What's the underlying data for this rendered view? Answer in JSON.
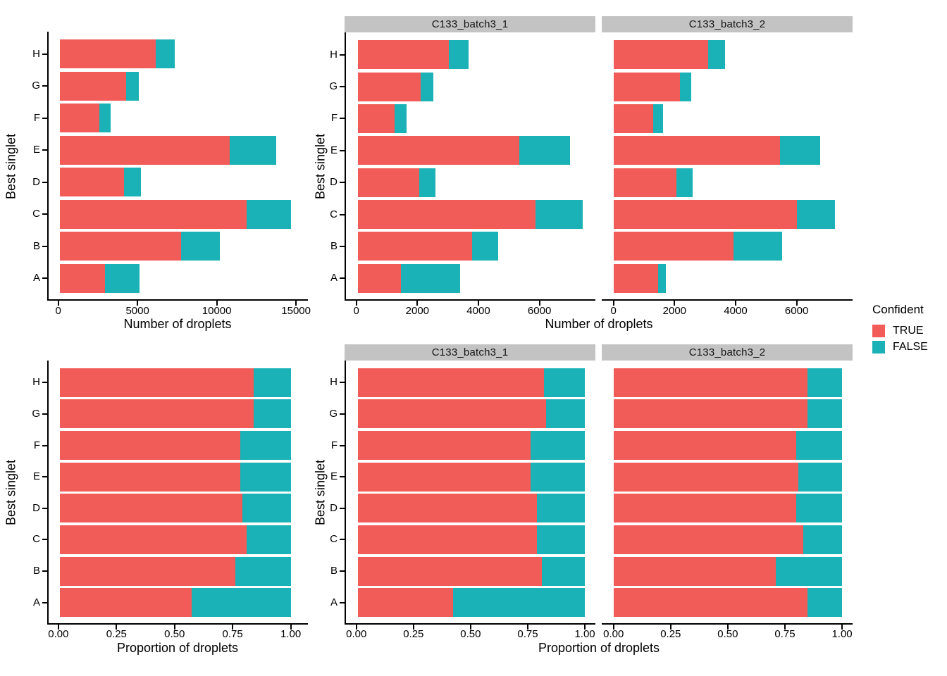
{
  "legend": {
    "title": "Confident",
    "items": [
      {
        "label": "TRUE",
        "color": "#F25C58"
      },
      {
        "label": "FALSE",
        "color": "#1AB2B6"
      }
    ]
  },
  "colors": {
    "true_fill": "#F25C58",
    "false_fill": "#1AB2B6",
    "strip_bg": "#C3C3C3",
    "axis": "#000000"
  },
  "chart_data": [
    {
      "type": "bar",
      "orientation": "horizontal",
      "stacked": true,
      "title": "",
      "xlabel": "Number of droplets",
      "ylabel": "Best singlet",
      "legend_title": "Confident",
      "grid": false,
      "categories_top_to_bottom": [
        "H",
        "G",
        "F",
        "E",
        "D",
        "C",
        "B",
        "A"
      ],
      "x_ticks": [
        0,
        5000,
        10000,
        15000
      ],
      "x_tick_labels": [
        "0",
        "5000",
        "10000",
        "15000"
      ],
      "xlim": [
        0,
        15500
      ],
      "facets": [
        {
          "label": null,
          "series": [
            {
              "name": "TRUE",
              "values": [
                6100,
                4240,
                2510,
                10770,
                4100,
                11870,
                7690,
                2890
              ]
            },
            {
              "name": "FALSE",
              "values": [
                1200,
                800,
                710,
                2980,
                1060,
                2800,
                2460,
                2200
              ]
            }
          ]
        }
      ]
    },
    {
      "type": "bar",
      "orientation": "horizontal",
      "stacked": true,
      "title": "",
      "xlabel": "Number of droplets",
      "ylabel": "Best singlet",
      "legend_title": "Confident",
      "grid": false,
      "categories_top_to_bottom": [
        "H",
        "G",
        "F",
        "E",
        "D",
        "C",
        "B",
        "A"
      ],
      "x_ticks": [
        0,
        2000,
        4000,
        6000
      ],
      "x_tick_labels": [
        "0",
        "2000",
        "4000",
        "6000"
      ],
      "xlim": [
        0,
        7600
      ],
      "facets": [
        {
          "label": "C133_batch3_1",
          "series": [
            {
              "name": "TRUE",
              "values": [
                3000,
                2070,
                1220,
                5320,
                2040,
                5850,
                3760,
                1430
              ]
            },
            {
              "name": "FALSE",
              "values": [
                650,
                420,
                380,
                1670,
                530,
                1560,
                860,
                1950
              ]
            }
          ]
        },
        {
          "label": "C133_batch3_2",
          "series": [
            {
              "name": "TRUE",
              "values": [
                3100,
                2170,
                1290,
                5450,
                2060,
                6020,
                3930,
                1460
              ]
            },
            {
              "name": "FALSE",
              "values": [
                550,
                380,
                330,
                1310,
                530,
                1240,
                1600,
                250
              ]
            }
          ]
        }
      ]
    },
    {
      "type": "bar",
      "orientation": "horizontal",
      "stacked": true,
      "title": "",
      "xlabel": "Proportion of droplets",
      "ylabel": "Best singlet",
      "legend_title": "Confident",
      "grid": false,
      "categories_top_to_bottom": [
        "H",
        "G",
        "F",
        "E",
        "D",
        "C",
        "B",
        "A"
      ],
      "x_ticks": [
        0,
        0.25,
        0.5,
        0.75,
        1
      ],
      "x_tick_labels": [
        "0.00",
        "0.25",
        "0.50",
        "0.75",
        "1.00"
      ],
      "xlim": [
        0,
        1
      ],
      "facets": [
        {
          "label": null,
          "series": [
            {
              "name": "TRUE",
              "values": [
                0.84,
                0.84,
                0.78,
                0.78,
                0.79,
                0.81,
                0.76,
                0.57
              ]
            },
            {
              "name": "FALSE",
              "values": [
                0.16,
                0.16,
                0.22,
                0.22,
                0.21,
                0.19,
                0.24,
                0.43
              ]
            }
          ]
        }
      ]
    },
    {
      "type": "bar",
      "orientation": "horizontal",
      "stacked": true,
      "title": "",
      "xlabel": "Proportion of droplets",
      "ylabel": "Best singlet",
      "legend_title": "Confident",
      "grid": false,
      "categories_top_to_bottom": [
        "H",
        "G",
        "F",
        "E",
        "D",
        "C",
        "B",
        "A"
      ],
      "x_ticks": [
        0,
        0.25,
        0.5,
        0.75,
        1
      ],
      "x_tick_labels": [
        "0.00",
        "0.25",
        "0.50",
        "0.75",
        "1.00"
      ],
      "xlim": [
        0,
        1
      ],
      "facets": [
        {
          "label": "C133_batch3_1",
          "series": [
            {
              "name": "TRUE",
              "values": [
                0.82,
                0.83,
                0.76,
                0.76,
                0.79,
                0.79,
                0.81,
                0.42
              ]
            },
            {
              "name": "FALSE",
              "values": [
                0.18,
                0.17,
                0.24,
                0.24,
                0.21,
                0.21,
                0.19,
                0.58
              ]
            }
          ]
        },
        {
          "label": "C133_batch3_2",
          "series": [
            {
              "name": "TRUE",
              "values": [
                0.85,
                0.85,
                0.8,
                0.81,
                0.8,
                0.83,
                0.71,
                0.85
              ]
            },
            {
              "name": "FALSE",
              "values": [
                0.15,
                0.15,
                0.2,
                0.19,
                0.2,
                0.17,
                0.29,
                0.15
              ]
            }
          ]
        }
      ]
    }
  ]
}
